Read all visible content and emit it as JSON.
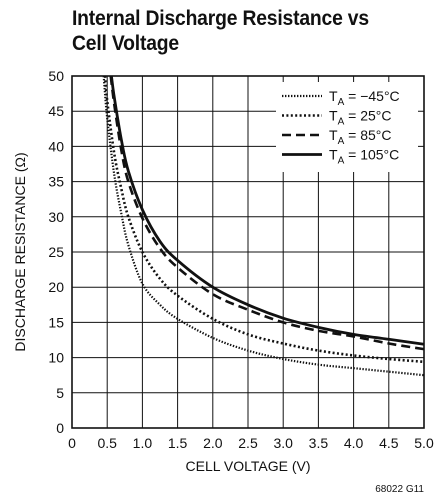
{
  "title_lines": [
    "Internal Discharge Resistance vs",
    "Cell Voltage"
  ],
  "figure_code": "68022 G11",
  "chart_data": {
    "type": "line",
    "xlabel": "CELL VOLTAGE (V)",
    "ylabel": "DISCHARGE RESISTANCE (Ω)",
    "xlim": [
      0,
      5.0
    ],
    "ylim": [
      0,
      50
    ],
    "x_ticks": [
      "0",
      "0.5",
      "1.0",
      "1.5",
      "2.0",
      "2.5",
      "3.0",
      "3.5",
      "4.0",
      "4.5",
      "5.0"
    ],
    "y_ticks": [
      "0",
      "5",
      "10",
      "15",
      "20",
      "25",
      "30",
      "35",
      "40",
      "45",
      "50"
    ],
    "grid": true,
    "legend_position": "top-right",
    "series": [
      {
        "name": "TA = −45°C",
        "label_main": "T",
        "label_sub": "A",
        "label_rest": " = −45°C",
        "style": "fine-dotted",
        "x": [
          0.45,
          0.5,
          0.6,
          0.7,
          0.8,
          1.0,
          1.25,
          1.5,
          2.0,
          2.5,
          3.0,
          3.5,
          4.0,
          4.5,
          5.0
        ],
        "y": [
          50,
          44.0,
          36.0,
          30.5,
          26.0,
          20.5,
          17.5,
          15.5,
          12.8,
          11.0,
          9.8,
          9.0,
          8.5,
          8.0,
          7.5
        ]
      },
      {
        "name": "TA = 25°C",
        "label_main": "T",
        "label_sub": "A",
        "label_rest": " = 25°C",
        "style": "dotted",
        "x": [
          0.47,
          0.5,
          0.6,
          0.7,
          0.8,
          1.0,
          1.25,
          1.5,
          2.0,
          2.5,
          3.0,
          3.5,
          4.0,
          4.5,
          5.0
        ],
        "y": [
          50,
          46.5,
          39.0,
          34.0,
          30.0,
          25.0,
          21.2,
          18.8,
          15.5,
          13.3,
          12.0,
          11.0,
          10.3,
          9.8,
          9.4
        ]
      },
      {
        "name": "TA = 85°C",
        "label_main": "T",
        "label_sub": "A",
        "label_rest": " = 85°C",
        "style": "dashed",
        "x": [
          0.55,
          0.6,
          0.7,
          0.8,
          1.0,
          1.25,
          1.5,
          2.0,
          2.5,
          3.0,
          3.5,
          4.0,
          4.5,
          5.0
        ],
        "y": [
          50,
          46.0,
          39.5,
          35.0,
          29.8,
          25.5,
          22.8,
          19.0,
          16.8,
          15.0,
          13.8,
          13.0,
          12.0,
          11.2
        ]
      },
      {
        "name": "TA = 105°C",
        "label_main": "T",
        "label_sub": "A",
        "label_rest": " = 105°C",
        "style": "solid",
        "x": [
          0.56,
          0.6,
          0.7,
          0.8,
          1.0,
          1.25,
          1.5,
          2.0,
          2.5,
          3.0,
          3.5,
          4.0,
          4.5,
          5.0
        ],
        "y": [
          50,
          47.0,
          41.0,
          36.5,
          31.0,
          26.5,
          23.8,
          20.0,
          17.5,
          15.6,
          14.3,
          13.3,
          12.6,
          11.9
        ]
      }
    ]
  }
}
